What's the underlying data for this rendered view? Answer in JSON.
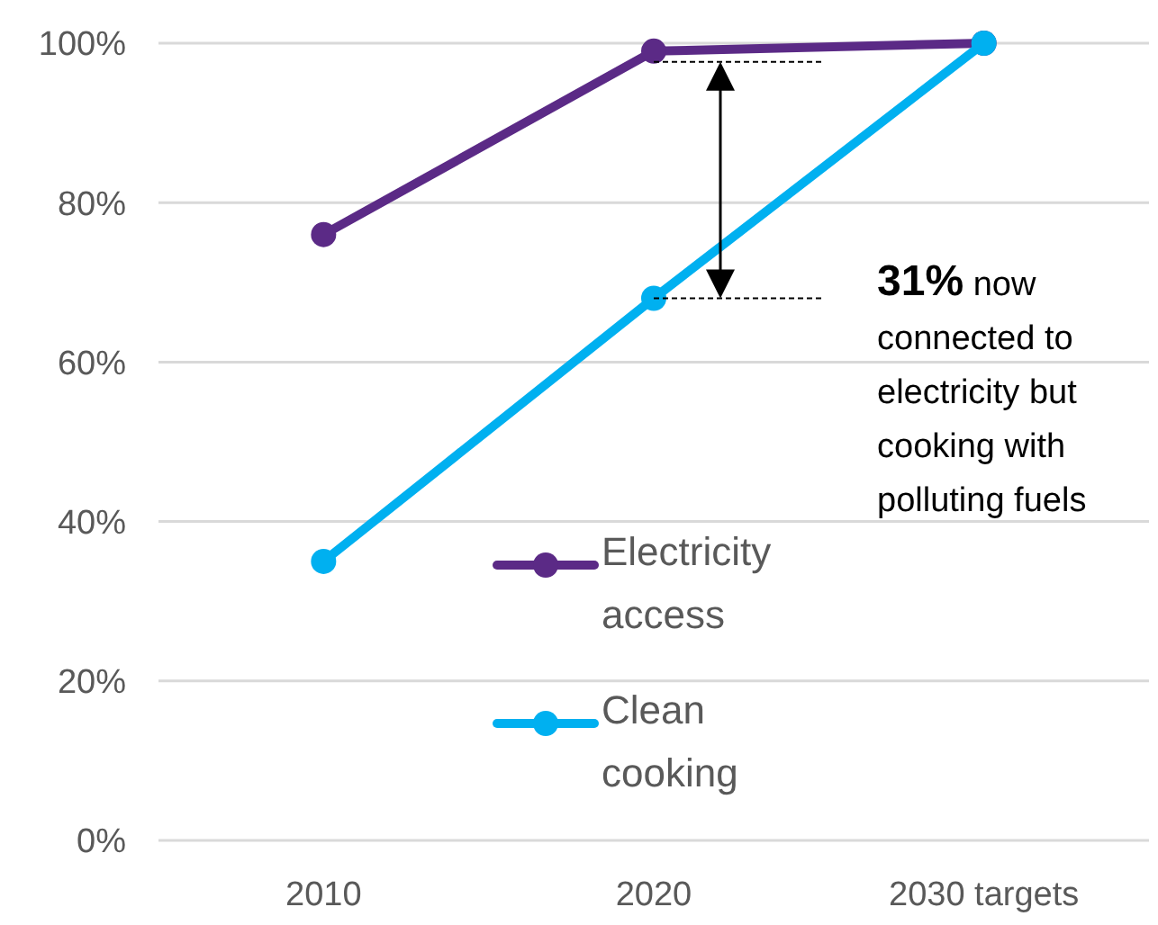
{
  "chart_data": {
    "type": "line",
    "categories": [
      "2010",
      "2020",
      "2030 targets"
    ],
    "series": [
      {
        "name": "Electricity access",
        "color": "#5b2a86",
        "values": [
          76,
          99,
          100
        ]
      },
      {
        "name": "Clean cooking",
        "color": "#00b0f0",
        "values": [
          35,
          68,
          100
        ]
      }
    ],
    "ylim": [
      0,
      100
    ],
    "yticks": [
      {
        "value": 0,
        "label": "0%"
      },
      {
        "value": 20,
        "label": "20%"
      },
      {
        "value": 40,
        "label": "40%"
      },
      {
        "value": 60,
        "label": "60%"
      },
      {
        "value": 80,
        "label": "80%"
      },
      {
        "value": 100,
        "label": "100%"
      }
    ],
    "grid": "y",
    "legend": "bottom",
    "marker": "circle",
    "line_style": "solid",
    "annotations": [
      {
        "text": "31% now connected to electricity but cooking with polluting fuels",
        "x": "2020",
        "y": 68
      }
    ]
  }
}
